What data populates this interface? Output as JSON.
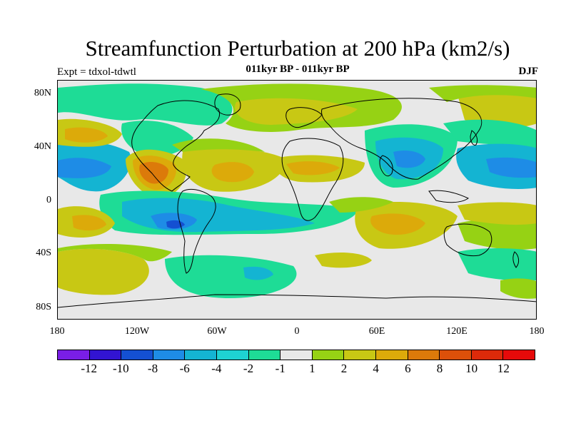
{
  "header": {
    "title": "Streamfunction Perturbation at 200 hPa (km2/s)",
    "left_label": "Expt = tdxol-tdwtl",
    "center_label": "011kyr BP - 011kyr BP",
    "right_label": "DJF"
  },
  "axes": {
    "lat_labels": [
      "80N",
      "40N",
      "0",
      "40S",
      "80S"
    ],
    "lon_labels": [
      "180",
      "120W",
      "60W",
      "0",
      "60E",
      "120E",
      "180"
    ]
  },
  "colorbar": {
    "colors": [
      "#7a1ee6",
      "#3214d2",
      "#1450d2",
      "#1e8ce6",
      "#14b4d2",
      "#1ed2d2",
      "#1edc96",
      "#e8e8e8",
      "#96d214",
      "#c8c814",
      "#dcaa0a",
      "#dc7a0a",
      "#dc500a",
      "#dc2a0a",
      "#e60a0a"
    ],
    "labels": [
      "-12",
      "-10",
      "-8",
      "-6",
      "-4",
      "-2",
      "-1",
      "1",
      "2",
      "4",
      "6",
      "8",
      "10",
      "12"
    ]
  }
}
